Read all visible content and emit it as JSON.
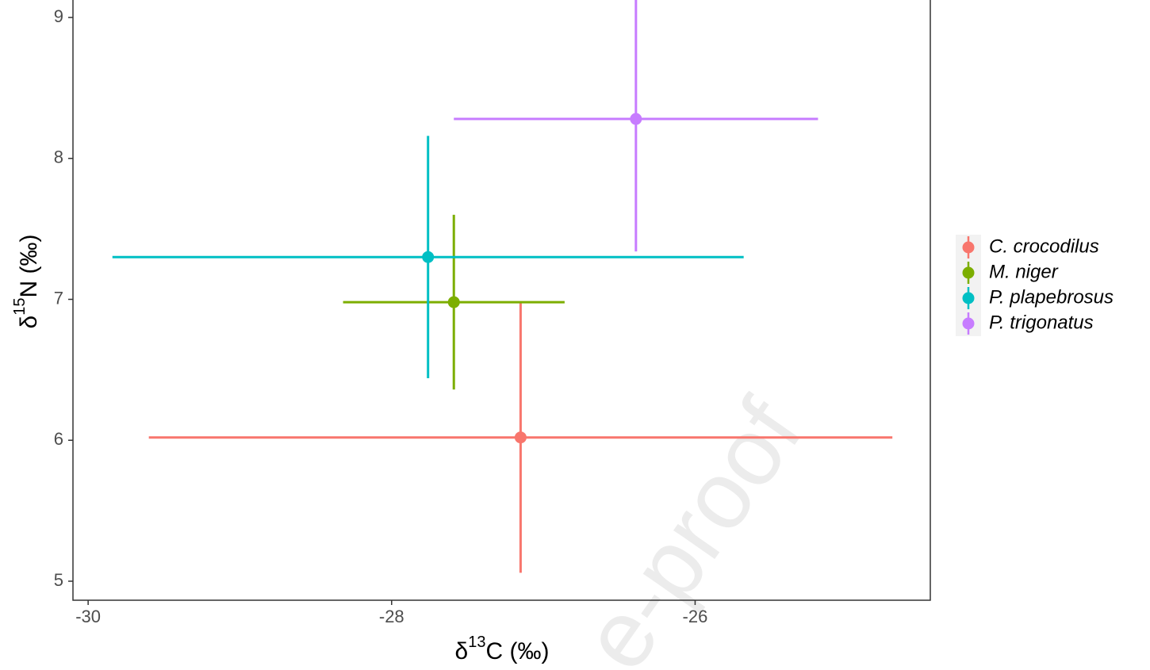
{
  "chart_data": {
    "type": "errorbar-scatter",
    "x_label": {
      "prefix": "δ",
      "sup": "13",
      "suffix": "C (‰)"
    },
    "y_label": {
      "prefix": "δ",
      "sup": "15",
      "suffix": "N (‰)"
    },
    "watermark": "e-proof",
    "xlim": [
      -30.1,
      -24.45
    ],
    "xticks": [
      -30,
      -28,
      -26
    ],
    "ylim": [
      4.865,
      9.124
    ],
    "yticks": [
      5,
      6,
      7,
      8,
      9
    ],
    "grid": false,
    "legend": "right",
    "series": [
      {
        "name": "C. crocodilus",
        "color": "#F8766D",
        "x": [
          -27.15
        ],
        "y": [
          6.02
        ],
        "xerr": [
          2.45
        ],
        "yerr": [
          0.96
        ]
      },
      {
        "name": "M. niger",
        "color": "#7CAE00",
        "x": [
          -27.59
        ],
        "y": [
          6.98
        ],
        "xerr": [
          0.73
        ],
        "yerr": [
          0.62
        ]
      },
      {
        "name": "P. plapebrosus",
        "color": "#00BFC4",
        "x": [
          -27.76
        ],
        "y": [
          7.3
        ],
        "xerr": [
          2.08
        ],
        "yerr": [
          0.86
        ]
      },
      {
        "name": "P. trigonatus",
        "color": "#C77CFF",
        "x": [
          -26.39
        ],
        "y": [
          8.28
        ],
        "xerr": [
          1.2
        ],
        "yerr": [
          0.94
        ]
      }
    ]
  }
}
